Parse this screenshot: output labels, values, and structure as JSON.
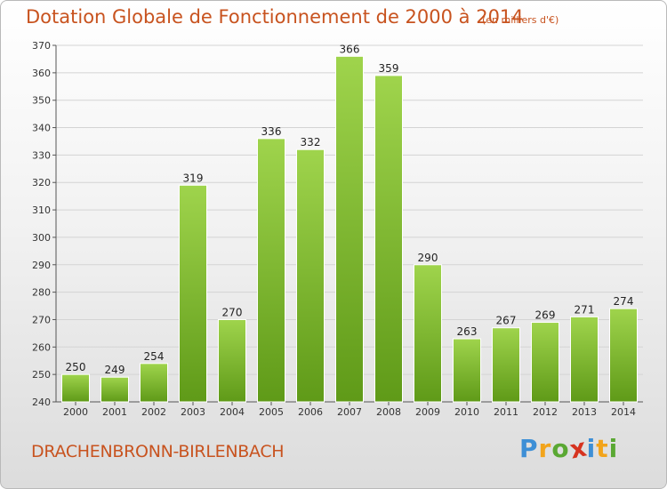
{
  "chart_data": {
    "type": "bar",
    "title": "Dotation Globale de Fonctionnement de 2000 à 2014",
    "subtitle": "(en milliers d'€)",
    "categories": [
      "2000",
      "2001",
      "2002",
      "2003",
      "2004",
      "2005",
      "2006",
      "2007",
      "2008",
      "2009",
      "2010",
      "2011",
      "2012",
      "2013",
      "2014"
    ],
    "values": [
      250,
      249,
      254,
      319,
      270,
      336,
      332,
      366,
      359,
      290,
      263,
      267,
      269,
      271,
      274
    ],
    "ylim": [
      240,
      370
    ],
    "yticks": [
      240,
      250,
      260,
      270,
      280,
      290,
      300,
      310,
      320,
      330,
      340,
      350,
      360,
      370
    ],
    "xlabel": "",
    "ylabel": "",
    "grid": true,
    "colors": {
      "bar_top": "#9fd44c",
      "bar_bottom": "#5f9a18",
      "grid": "#d4d4d4",
      "axis": "#555555"
    }
  },
  "footer": {
    "commune": "DRACHENBRONN-BIRLENBACH",
    "logo_letters": [
      "P",
      "r",
      "o",
      "x",
      "i",
      "t",
      "i"
    ],
    "logo_colors": [
      "#3d8fd6",
      "#f2a41b",
      "#5aa833",
      "#d6331f",
      "#3d8fd6",
      "#f2a41b",
      "#5aa833"
    ]
  }
}
